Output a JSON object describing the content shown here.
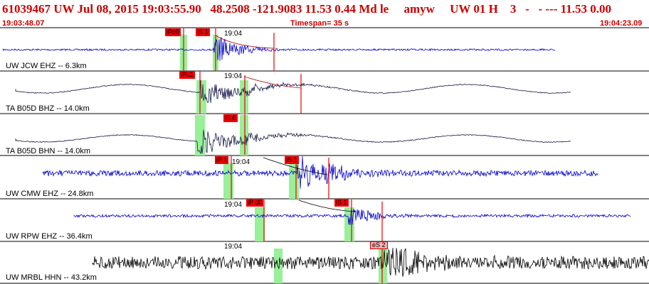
{
  "header": {
    "title": "61039467 UW Jul 08, 2015 19:03:55.90   48.2508 -121.9083 11.53 0.44 Md le     amyw     UW 01 H    3   -   - --- 11.53 0.00",
    "start_time": "19:03:48.07",
    "timespan": "Timespan=  35 s",
    "end_time": "19:04:23.09"
  },
  "colors": {
    "header_text": "#cc0000",
    "trace_blue": "#0000cc",
    "trace_dark": "#1a1a4a",
    "pick_red": "#ee0000",
    "pick_window": "#98f098"
  },
  "traces": [
    {
      "label": "UW JCW EHZ -- 6.3km",
      "time_label": "19:04",
      "picks": [
        "iPc0",
        "iS 1"
      ],
      "color": "blue"
    },
    {
      "label": "TA B05D BHZ -- 14.0km",
      "time_label": "19:04",
      "picks": [
        "iPc1"
      ],
      "color": "dark"
    },
    {
      "label": "TA B05D BHN -- 14.0km",
      "time_label": "",
      "picks": [
        "iS 0"
      ],
      "color": "dark"
    },
    {
      "label": "UW CMW EHZ -- 24.8km",
      "time_label": "19:04",
      "picks": [
        "iP 1",
        "iS 1"
      ],
      "color": "blue"
    },
    {
      "label": "UW RPW EHZ -- 36.4km",
      "time_label": "19:04",
      "picks": [
        "iP d0",
        "iS 1"
      ],
      "color": "blue"
    },
    {
      "label": "UW MRBL HHN -- 43.2km",
      "time_label": "19:04",
      "picks": [
        "eS 2"
      ],
      "color": "black"
    }
  ]
}
